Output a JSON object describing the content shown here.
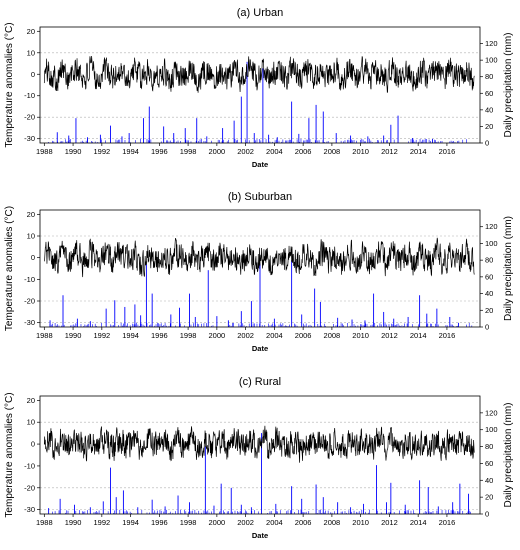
{
  "figure": {
    "x_axis_label": "Date",
    "left_axis_label": "Temperature anomalies (°C)",
    "right_axis_label": "Daily precipitation (mm)",
    "colors": {
      "temperature": "#000000",
      "precipitation": "#0000ff",
      "frame": "#000000",
      "reference_lines": "#b0b0b0"
    }
  },
  "chart_data": [
    {
      "type": "line",
      "title": "(a) Urban",
      "xlabel": "Date",
      "ylabel": "Temperature anomalies (°C)",
      "y2label": "Daily precipitation (mm)",
      "x_ticks": [
        "1988",
        "1990",
        "1992",
        "1994",
        "1996",
        "1998",
        "2000",
        "2002",
        "2004",
        "2006",
        "2008",
        "2010",
        "2012",
        "2014",
        "2016"
      ],
      "xlim": [
        1987.7,
        2018.3
      ],
      "ylim": [
        -32,
        22
      ],
      "yticks": [
        -30,
        -20,
        -10,
        0,
        10,
        20
      ],
      "y2lim": [
        0,
        140
      ],
      "y2ticks": [
        0,
        20,
        40,
        60,
        80,
        100,
        120
      ],
      "reference_lines_y": [
        -30,
        -20,
        10
      ],
      "series": [
        {
          "type": "line",
          "axis": "left",
          "baseline": 0,
          "amplitude": 4.5,
          "range": [
            -17,
            11
          ]
        },
        {
          "type": "bar",
          "axis": "right",
          "events": [
            {
              "date": 1988.9,
              "mm": 13
            },
            {
              "date": 1989.7,
              "mm": 9
            },
            {
              "date": 1990.2,
              "mm": 30
            },
            {
              "date": 1991.0,
              "mm": 7
            },
            {
              "date": 1991.9,
              "mm": 10
            },
            {
              "date": 1992.6,
              "mm": 21
            },
            {
              "date": 1993.4,
              "mm": 8
            },
            {
              "date": 1993.9,
              "mm": 12
            },
            {
              "date": 1994.9,
              "mm": 30
            },
            {
              "date": 1995.3,
              "mm": 44
            },
            {
              "date": 1996.3,
              "mm": 20
            },
            {
              "date": 1997.0,
              "mm": 12
            },
            {
              "date": 1997.8,
              "mm": 18
            },
            {
              "date": 1998.6,
              "mm": 30
            },
            {
              "date": 1999.3,
              "mm": 8
            },
            {
              "date": 2000.4,
              "mm": 18
            },
            {
              "date": 2001.2,
              "mm": 27
            },
            {
              "date": 2001.7,
              "mm": 56
            },
            {
              "date": 2002.1,
              "mm": 98
            },
            {
              "date": 2002.6,
              "mm": 12
            },
            {
              "date": 2003.2,
              "mm": 90
            },
            {
              "date": 2003.6,
              "mm": 10
            },
            {
              "date": 2004.2,
              "mm": 7
            },
            {
              "date": 2005.2,
              "mm": 50
            },
            {
              "date": 2005.7,
              "mm": 11
            },
            {
              "date": 2006.4,
              "mm": 30
            },
            {
              "date": 2006.9,
              "mm": 46
            },
            {
              "date": 2007.4,
              "mm": 38
            },
            {
              "date": 2008.3,
              "mm": 12
            },
            {
              "date": 2009.3,
              "mm": 9
            },
            {
              "date": 2010.5,
              "mm": 8
            },
            {
              "date": 2011.6,
              "mm": 9
            },
            {
              "date": 2012.1,
              "mm": 22
            },
            {
              "date": 2012.6,
              "mm": 33
            },
            {
              "date": 2013.6,
              "mm": 6
            },
            {
              "date": 2015.0,
              "mm": 5
            }
          ]
        }
      ]
    },
    {
      "type": "line",
      "title": "(b) Suburban",
      "xlabel": "Date",
      "ylabel": "Temperature anomalies (°C)",
      "y2label": "Daily precipitation (mm)",
      "x_ticks": [
        "1988",
        "1990",
        "1992",
        "1994",
        "1996",
        "1998",
        "2000",
        "2002",
        "2004",
        "2006",
        "2008",
        "2010",
        "2012",
        "2014",
        "2016"
      ],
      "xlim": [
        1987.7,
        2018.3
      ],
      "ylim": [
        -32,
        22
      ],
      "yticks": [
        -30,
        -20,
        -10,
        0,
        10,
        20
      ],
      "y2lim": [
        0,
        140
      ],
      "y2ticks": [
        0,
        20,
        40,
        60,
        80,
        100,
        120
      ],
      "reference_lines_y": [
        -30,
        -20,
        10
      ],
      "series": [
        {
          "type": "line",
          "axis": "left",
          "baseline": 0,
          "amplitude": 4.5,
          "range": [
            -11,
            12
          ]
        },
        {
          "type": "bar",
          "axis": "right",
          "events": [
            {
              "date": 1988.4,
              "mm": 8
            },
            {
              "date": 1989.3,
              "mm": 38
            },
            {
              "date": 1990.3,
              "mm": 10
            },
            {
              "date": 1991.2,
              "mm": 7
            },
            {
              "date": 1992.3,
              "mm": 22
            },
            {
              "date": 1992.9,
              "mm": 32
            },
            {
              "date": 1993.6,
              "mm": 24
            },
            {
              "date": 1994.3,
              "mm": 27
            },
            {
              "date": 1994.7,
              "mm": 14
            },
            {
              "date": 1995.1,
              "mm": 75
            },
            {
              "date": 1995.5,
              "mm": 40
            },
            {
              "date": 1996.8,
              "mm": 15
            },
            {
              "date": 1997.4,
              "mm": 23
            },
            {
              "date": 1998.1,
              "mm": 40
            },
            {
              "date": 1998.5,
              "mm": 12
            },
            {
              "date": 1999.4,
              "mm": 68
            },
            {
              "date": 2000.0,
              "mm": 13
            },
            {
              "date": 2000.8,
              "mm": 8
            },
            {
              "date": 2001.7,
              "mm": 19
            },
            {
              "date": 2002.4,
              "mm": 31
            },
            {
              "date": 2003.0,
              "mm": 76
            },
            {
              "date": 2004.0,
              "mm": 10
            },
            {
              "date": 2005.2,
              "mm": 80
            },
            {
              "date": 2005.9,
              "mm": 15
            },
            {
              "date": 2006.8,
              "mm": 46
            },
            {
              "date": 2007.2,
              "mm": 30
            },
            {
              "date": 2008.4,
              "mm": 11
            },
            {
              "date": 2009.4,
              "mm": 9
            },
            {
              "date": 2010.3,
              "mm": 8
            },
            {
              "date": 2010.9,
              "mm": 40
            },
            {
              "date": 2011.6,
              "mm": 18
            },
            {
              "date": 2012.3,
              "mm": 10
            },
            {
              "date": 2013.3,
              "mm": 12
            },
            {
              "date": 2014.1,
              "mm": 38
            },
            {
              "date": 2014.6,
              "mm": 16
            },
            {
              "date": 2015.3,
              "mm": 22
            },
            {
              "date": 2016.2,
              "mm": 12
            },
            {
              "date": 2016.8,
              "mm": 5
            }
          ]
        }
      ]
    },
    {
      "type": "line",
      "title": "(c) Rural",
      "xlabel": "Date",
      "ylabel": "Temperature anomalies (°C)",
      "y2label": "Daily precipitation (mm)",
      "x_ticks": [
        "1988",
        "1990",
        "1992",
        "1994",
        "1996",
        "1998",
        "2000",
        "2002",
        "2004",
        "2006",
        "2008",
        "2010",
        "2012",
        "2014",
        "2016"
      ],
      "xlim": [
        1987.7,
        2018.3
      ],
      "ylim": [
        -32,
        22
      ],
      "yticks": [
        -30,
        -20,
        -10,
        0,
        10,
        20
      ],
      "y2lim": [
        0,
        140
      ],
      "y2ticks": [
        0,
        20,
        40,
        60,
        80,
        100,
        120
      ],
      "reference_lines_y": [
        -30,
        -20,
        10
      ],
      "series": [
        {
          "type": "line",
          "axis": "left",
          "baseline": 0,
          "amplitude": 4.5,
          "range": [
            -11,
            12
          ]
        },
        {
          "type": "bar",
          "axis": "right",
          "events": [
            {
              "date": 1988.3,
              "mm": 7
            },
            {
              "date": 1989.1,
              "mm": 18
            },
            {
              "date": 1990.1,
              "mm": 11
            },
            {
              "date": 1991.2,
              "mm": 8
            },
            {
              "date": 1992.1,
              "mm": 15
            },
            {
              "date": 1992.6,
              "mm": 55
            },
            {
              "date": 1993.0,
              "mm": 20
            },
            {
              "date": 1993.5,
              "mm": 28
            },
            {
              "date": 1994.5,
              "mm": 8
            },
            {
              "date": 1995.5,
              "mm": 17
            },
            {
              "date": 1996.4,
              "mm": 9
            },
            {
              "date": 1997.3,
              "mm": 22
            },
            {
              "date": 1998.1,
              "mm": 14
            },
            {
              "date": 1999.2,
              "mm": 80
            },
            {
              "date": 1999.8,
              "mm": 10
            },
            {
              "date": 2000.3,
              "mm": 36
            },
            {
              "date": 2001.0,
              "mm": 31
            },
            {
              "date": 2001.7,
              "mm": 11
            },
            {
              "date": 2002.4,
              "mm": 8
            },
            {
              "date": 2003.1,
              "mm": 96
            },
            {
              "date": 2004.1,
              "mm": 12
            },
            {
              "date": 2005.2,
              "mm": 33
            },
            {
              "date": 2005.9,
              "mm": 18
            },
            {
              "date": 2006.9,
              "mm": 35
            },
            {
              "date": 2007.4,
              "mm": 20
            },
            {
              "date": 2008.4,
              "mm": 14
            },
            {
              "date": 2009.3,
              "mm": 8
            },
            {
              "date": 2010.2,
              "mm": 12
            },
            {
              "date": 2011.1,
              "mm": 58
            },
            {
              "date": 2011.8,
              "mm": 14
            },
            {
              "date": 2012.1,
              "mm": 37
            },
            {
              "date": 2013.1,
              "mm": 11
            },
            {
              "date": 2014.1,
              "mm": 40
            },
            {
              "date": 2014.7,
              "mm": 32
            },
            {
              "date": 2015.4,
              "mm": 9
            },
            {
              "date": 2016.4,
              "mm": 14
            },
            {
              "date": 2016.9,
              "mm": 36
            },
            {
              "date": 2017.5,
              "mm": 24
            }
          ]
        }
      ]
    }
  ]
}
